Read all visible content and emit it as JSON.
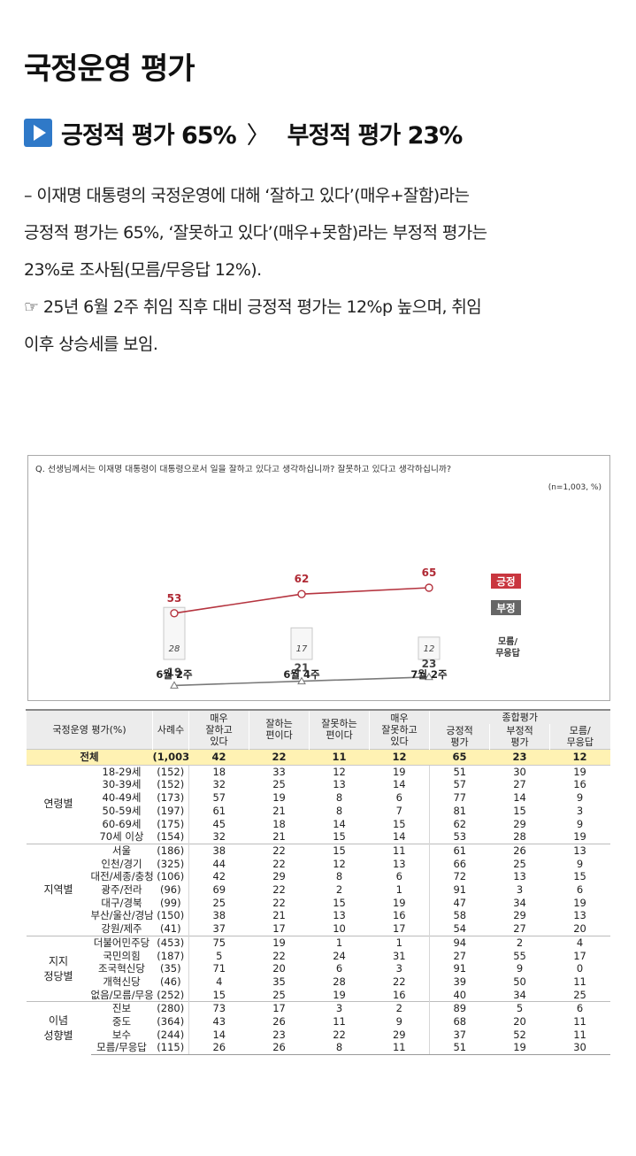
{
  "title": "국정운영 평가",
  "subtitle": {
    "positive": "긍정적 평가 65%",
    "separator": "〉",
    "negative": "부정적 평가 23%"
  },
  "description": [
    "– 이재명 대통령의 국정운영에 대해 ‘잘하고 있다’(매우+잘함)라는",
    "긍정적 평가는 65%, ‘잘못하고 있다’(매우+못함)라는 부정적 평가는",
    "23%로 조사됨(모름/무응답 12%).",
    " ☞ 25년 6월 2주 취임 직후 대비 긍정적 평가는 12%p 높으며, 취임",
    "이후 상승세를 보임."
  ],
  "chart_data": {
    "type": "line",
    "title": "Q. 선생님께서는 이재명 대통령이 대통령으로서 일을 잘하고 있다고 생각하십니까? 잘못하고 있다고 생각하십니까?",
    "note": "(n=1,003, %)",
    "categories": [
      "6월 2주",
      "6월 4주",
      "7월 2주"
    ],
    "series": [
      {
        "name": "긍정",
        "values": [
          53,
          62,
          65
        ],
        "color": "#b5343f"
      },
      {
        "name": "부정",
        "values": [
          19,
          21,
          23
        ],
        "color": "#7a7a7a"
      }
    ],
    "bars": {
      "name": "모름/무응답",
      "values": [
        28,
        17,
        12
      ]
    },
    "legend": [
      "긍정",
      "부정",
      "모름/무응답"
    ],
    "legend_colors": [
      "#c9363f",
      "#666666"
    ]
  },
  "table": {
    "header": {
      "category": "국정운영 평가(%)",
      "sample": "사례수",
      "cols": [
        "매우\n잘하고\n있다",
        "잘하는\n편이다",
        "잘못하는\n편이다",
        "매우\n잘못하고\n있다"
      ],
      "summary": "종합평가",
      "sub": [
        "긍정적\n평가",
        "부정적\n평가",
        "모름/\n무응답"
      ]
    },
    "total": {
      "label": "전체",
      "n": "(1,003)",
      "values": [
        "42",
        "22",
        "11",
        "12",
        "65",
        "23",
        "12"
      ]
    },
    "groups": [
      {
        "name": "연령별",
        "rows": [
          {
            "label": "18-29세",
            "n": "(152)",
            "values": [
              "18",
              "33",
              "12",
              "19",
              "51",
              "30",
              "19"
            ]
          },
          {
            "label": "30-39세",
            "n": "(152)",
            "values": [
              "32",
              "25",
              "13",
              "14",
              "57",
              "27",
              "16"
            ]
          },
          {
            "label": "40-49세",
            "n": "(173)",
            "values": [
              "57",
              "19",
              "8",
              "6",
              "77",
              "14",
              "9"
            ]
          },
          {
            "label": "50-59세",
            "n": "(197)",
            "values": [
              "61",
              "21",
              "8",
              "7",
              "81",
              "15",
              "3"
            ]
          },
          {
            "label": "60-69세",
            "n": "(175)",
            "values": [
              "45",
              "18",
              "14",
              "15",
              "62",
              "29",
              "9"
            ]
          },
          {
            "label": "70세 이상",
            "n": "(154)",
            "values": [
              "32",
              "21",
              "15",
              "14",
              "53",
              "28",
              "19"
            ]
          }
        ]
      },
      {
        "name": "지역별",
        "rows": [
          {
            "label": "서울",
            "n": "(186)",
            "values": [
              "38",
              "22",
              "15",
              "11",
              "61",
              "26",
              "13"
            ]
          },
          {
            "label": "인천/경기",
            "n": "(325)",
            "values": [
              "44",
              "22",
              "12",
              "13",
              "66",
              "25",
              "9"
            ]
          },
          {
            "label": "대전/세종/충청",
            "n": "(106)",
            "values": [
              "42",
              "29",
              "8",
              "6",
              "72",
              "13",
              "15"
            ]
          },
          {
            "label": "광주/전라",
            "n": "(96)",
            "values": [
              "69",
              "22",
              "2",
              "1",
              "91",
              "3",
              "6"
            ]
          },
          {
            "label": "대구/경북",
            "n": "(99)",
            "values": [
              "25",
              "22",
              "15",
              "19",
              "47",
              "34",
              "19"
            ]
          },
          {
            "label": "부산/울산/경남",
            "n": "(150)",
            "values": [
              "38",
              "21",
              "13",
              "16",
              "58",
              "29",
              "13"
            ]
          },
          {
            "label": "강원/제주",
            "n": "(41)",
            "values": [
              "37",
              "17",
              "10",
              "17",
              "54",
              "27",
              "20"
            ]
          }
        ]
      },
      {
        "name": "지지\n정당별",
        "rows": [
          {
            "label": "더불어민주당",
            "n": "(453)",
            "values": [
              "75",
              "19",
              "1",
              "1",
              "94",
              "2",
              "4"
            ]
          },
          {
            "label": "국민의힘",
            "n": "(187)",
            "values": [
              "5",
              "22",
              "24",
              "31",
              "27",
              "55",
              "17"
            ]
          },
          {
            "label": "조국혁신당",
            "n": "(35)",
            "values": [
              "71",
              "20",
              "6",
              "3",
              "91",
              "9",
              "0"
            ]
          },
          {
            "label": "개혁신당",
            "n": "(46)",
            "values": [
              "4",
              "35",
              "28",
              "22",
              "39",
              "50",
              "11"
            ]
          },
          {
            "label": "없음/모름/무응답",
            "n": "(252)",
            "values": [
              "15",
              "25",
              "19",
              "16",
              "40",
              "34",
              "25"
            ]
          }
        ]
      },
      {
        "name": "이념\n성향별",
        "rows": [
          {
            "label": "진보",
            "n": "(280)",
            "values": [
              "73",
              "17",
              "3",
              "2",
              "89",
              "5",
              "6"
            ]
          },
          {
            "label": "중도",
            "n": "(364)",
            "values": [
              "43",
              "26",
              "11",
              "9",
              "68",
              "20",
              "11"
            ]
          },
          {
            "label": "보수",
            "n": "(244)",
            "values": [
              "14",
              "23",
              "22",
              "29",
              "37",
              "52",
              "11"
            ]
          },
          {
            "label": "모름/무응답",
            "n": "(115)",
            "values": [
              "26",
              "26",
              "8",
              "11",
              "51",
              "19",
              "30"
            ]
          }
        ]
      }
    ]
  }
}
